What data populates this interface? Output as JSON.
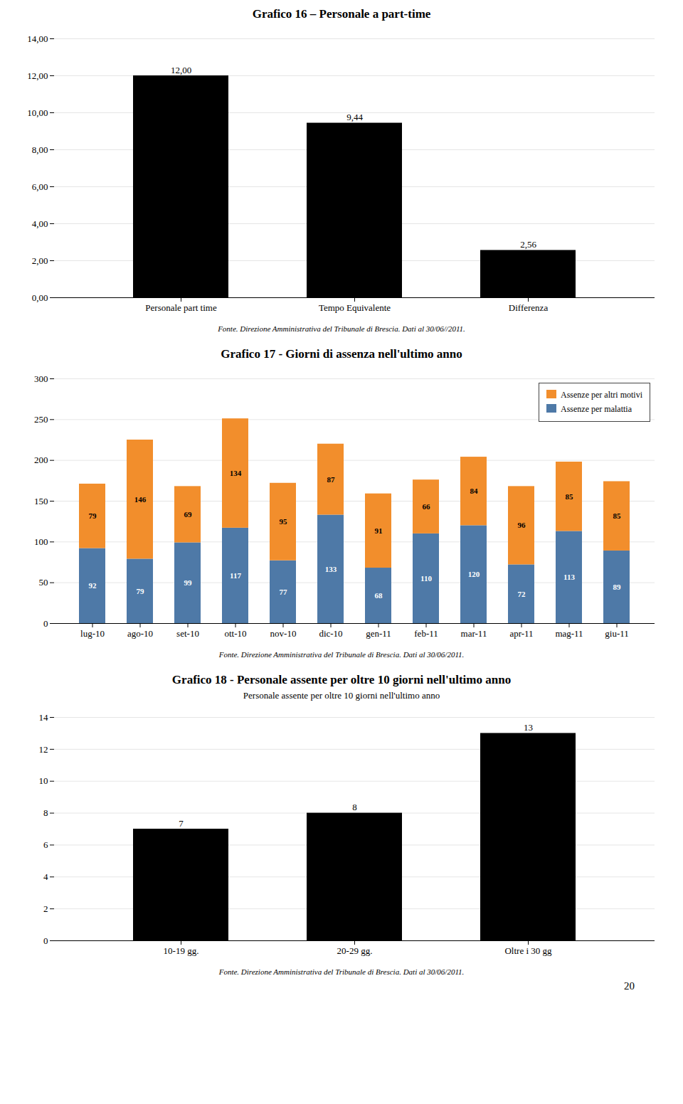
{
  "chart_data": [
    {
      "type": "bar",
      "title": "Grafico 16 – Personale a part-time",
      "categories": [
        "Personale part time",
        "Tempo Equivalente",
        "Differenza"
      ],
      "values": [
        12.0,
        9.44,
        2.56
      ],
      "value_labels": [
        "12,00",
        "9,44",
        "2,56"
      ],
      "data_labels": true,
      "ylim": [
        0,
        14
      ],
      "yticks": [
        {
          "value": 0,
          "label": "0,00"
        },
        {
          "value": 2,
          "label": "2,00"
        },
        {
          "value": 4,
          "label": "4,00"
        },
        {
          "value": 6,
          "label": "6,00"
        },
        {
          "value": 8,
          "label": "8,00"
        },
        {
          "value": 10,
          "label": "10,00"
        },
        {
          "value": 12,
          "label": "12,00"
        },
        {
          "value": 14,
          "label": "14,00"
        }
      ],
      "grid": true,
      "caption": "Fonte. Direzione Amministrativa del Tribunale di Brescia. Dati al 30/06//2011."
    },
    {
      "type": "bar",
      "title": "Grafico 17 - Giorni di assenza nell'ultimo anno",
      "categories": [
        "lug-10",
        "ago-10",
        "set-10",
        "ott-10",
        "nov-10",
        "dic-10",
        "gen-11",
        "feb-11",
        "mar-11",
        "apr-11",
        "mag-11",
        "giu-11"
      ],
      "series": [
        {
          "name": "Assenze per malattia",
          "values": [
            92,
            79,
            99,
            117,
            77,
            133,
            68,
            110,
            120,
            72,
            113,
            89
          ]
        },
        {
          "name": "Assenze per altri motivi",
          "values": [
            79,
            146,
            69,
            134,
            95,
            87,
            91,
            66,
            84,
            96,
            85,
            85
          ]
        }
      ],
      "stacked": true,
      "data_labels": true,
      "legend": "upper right",
      "ylim": [
        0,
        300
      ],
      "yticks": [
        0,
        50,
        100,
        150,
        200,
        250,
        300
      ],
      "grid": true,
      "caption": "Fonte. Direzione Amministrativa del Tribunale di Brescia. Dati al 30/06/2011."
    },
    {
      "type": "bar",
      "title": "Grafico 18 - Personale assente per oltre 10 giorni nell'ultimo anno",
      "subtitle": "Personale assente per oltre 10 giorni nell'ultimo anno",
      "categories": [
        "10-19 gg.",
        "20-29 gg.",
        "Oltre i 30 gg"
      ],
      "values": [
        7,
        8,
        13
      ],
      "data_labels": true,
      "ylim": [
        0,
        14
      ],
      "yticks": [
        0,
        2,
        4,
        6,
        8,
        10,
        12,
        14
      ],
      "grid": true,
      "caption": "Fonte. Direzione Amministrativa del Tribunale di Brescia. Dati al 30/06/2011.",
      "annotation": "20"
    }
  ]
}
